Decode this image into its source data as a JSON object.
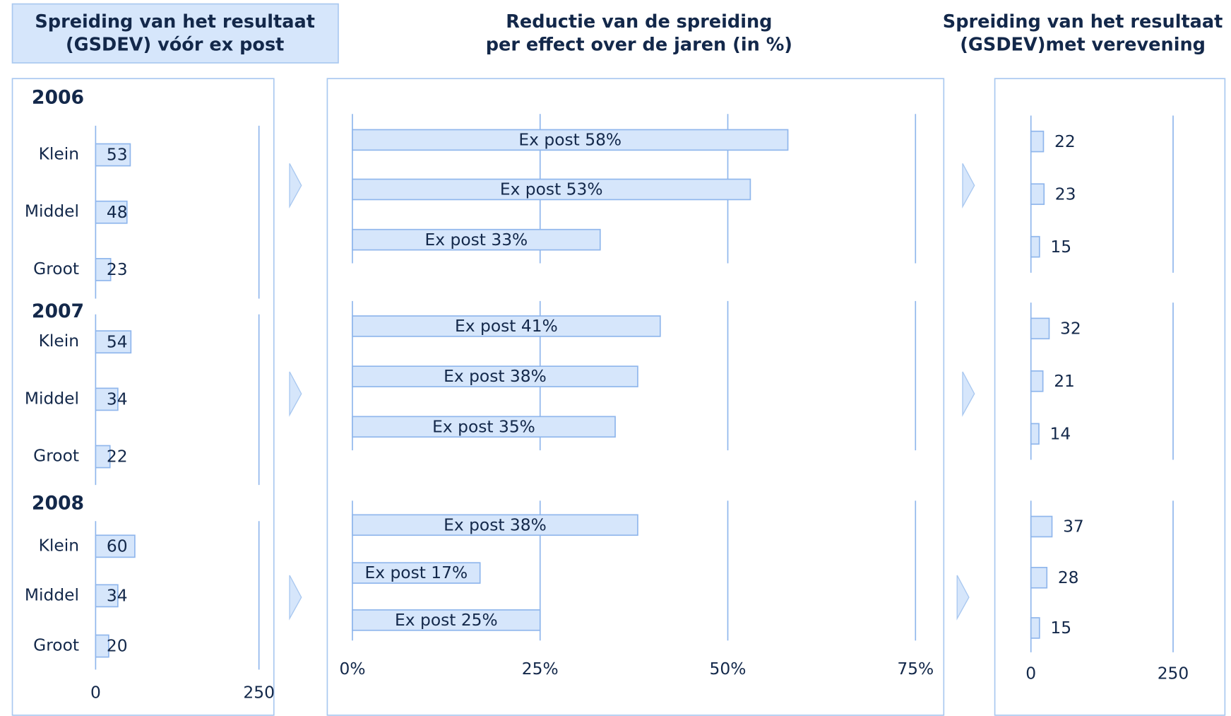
{
  "chart_data": [
    {
      "type": "bar",
      "title": [
        "Spreiding van het resultaat",
        "(GSDEV) vóór ex post"
      ],
      "groups": [
        {
          "name": "2006",
          "categories": [
            "Klein",
            "Middel",
            "Groot"
          ],
          "values": [
            53,
            48,
            23
          ]
        },
        {
          "name": "2007",
          "categories": [
            "Klein",
            "Middel",
            "Groot"
          ],
          "values": [
            54,
            34,
            22
          ]
        },
        {
          "name": "2008",
          "categories": [
            "Klein",
            "Middel",
            "Groot"
          ],
          "values": [
            60,
            34,
            20
          ]
        }
      ],
      "xlim": [
        0,
        250
      ],
      "xticks": [
        0,
        250
      ],
      "color": "#d6e6fb"
    },
    {
      "type": "bar",
      "title": [
        "Reductie van de spreiding",
        "per effect over de jaren (in %)"
      ],
      "groups": [
        {
          "values": [
            58,
            53,
            33
          ],
          "value_labels": [
            "Ex post 58%",
            "Ex post 53%",
            "Ex post 33%"
          ]
        },
        {
          "values": [
            41,
            38,
            35
          ],
          "value_labels": [
            "Ex post 41%",
            "Ex post 38%",
            "Ex post 35%"
          ]
        },
        {
          "values": [
            38,
            17,
            25
          ],
          "value_labels": [
            "Ex post 38%",
            "Ex post 17%",
            "Ex post 25%"
          ]
        }
      ],
      "xlim": [
        0,
        75
      ],
      "xticks": [
        {
          "value": 0,
          "label": "0%"
        },
        {
          "value": 25,
          "label": "25%"
        },
        {
          "value": 50,
          "label": "50%"
        },
        {
          "value": 75,
          "label": "75%"
        }
      ],
      "color": "#d6e6fb"
    },
    {
      "type": "bar",
      "title": [
        "Spreiding van het resultaat",
        "(GSDEV)met verevening"
      ],
      "groups": [
        {
          "values": [
            22,
            23,
            15
          ]
        },
        {
          "values": [
            32,
            21,
            14
          ]
        },
        {
          "values": [
            37,
            28,
            15
          ]
        }
      ],
      "xlim": [
        0,
        250
      ],
      "xticks": [
        0,
        250
      ],
      "color": "#d6e6fb"
    }
  ]
}
